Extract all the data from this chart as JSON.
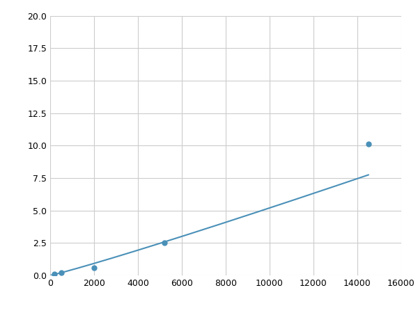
{
  "x": [
    200,
    500,
    2000,
    5200,
    14500
  ],
  "y": [
    0.1,
    0.2,
    0.6,
    2.5,
    10.1
  ],
  "line_color": "#4a90b8",
  "marker_color": "#4a90b8",
  "marker_size": 5,
  "marker_style": "o",
  "xlim": [
    0,
    16000
  ],
  "ylim": [
    0,
    20
  ],
  "xticks": [
    0,
    2000,
    4000,
    6000,
    8000,
    10000,
    12000,
    14000,
    16000
  ],
  "yticks": [
    0.0,
    2.5,
    5.0,
    7.5,
    10.0,
    12.5,
    15.0,
    17.5,
    20.0
  ],
  "grid": true,
  "grid_color": "#cccccc",
  "background_color": "#ffffff",
  "line_width": 1.5
}
